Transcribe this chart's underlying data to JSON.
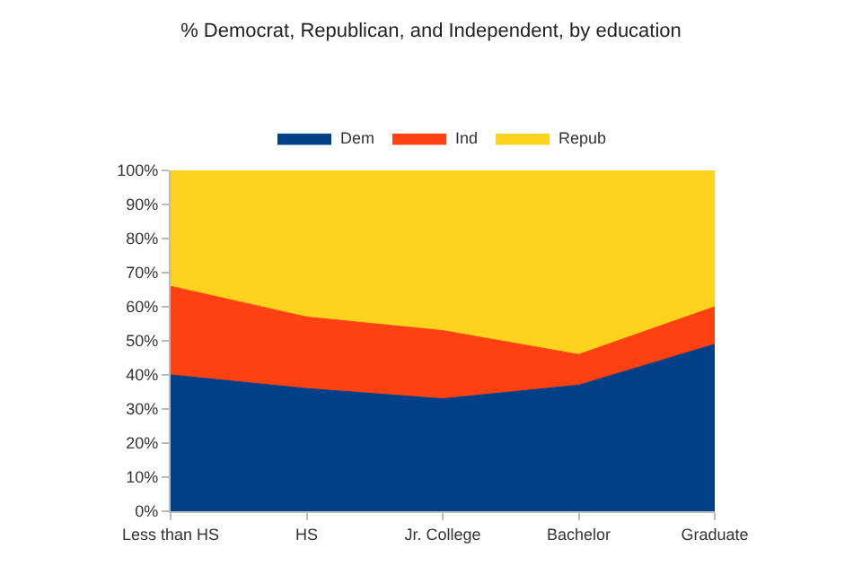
{
  "chart_data": {
    "type": "area",
    "title": "% Democrat, Republican, and Independent, by education",
    "categories": [
      "Less than HS",
      "HS",
      "Jr. College",
      "Bachelor",
      "Graduate"
    ],
    "stacked": true,
    "series": [
      {
        "name": "Dem",
        "color": "#013f87",
        "values": [
          40,
          36,
          33,
          37,
          49
        ]
      },
      {
        "name": "Ind",
        "color": "#fd4110",
        "values": [
          26,
          21,
          20,
          9,
          11
        ]
      },
      {
        "name": "Repub",
        "color": "#fdd31e",
        "values": [
          34,
          43,
          47,
          54,
          40
        ]
      }
    ],
    "ylim": [
      0,
      100
    ],
    "yticks": [
      {
        "value": 0,
        "label": "0%"
      },
      {
        "value": 10,
        "label": "10%"
      },
      {
        "value": 20,
        "label": "20%"
      },
      {
        "value": 30,
        "label": "30%"
      },
      {
        "value": 40,
        "label": "40%"
      },
      {
        "value": 50,
        "label": "50%"
      },
      {
        "value": 60,
        "label": "60%"
      },
      {
        "value": 70,
        "label": "70%"
      },
      {
        "value": 80,
        "label": "80%"
      },
      {
        "value": 90,
        "label": "90%"
      },
      {
        "value": 100,
        "label": "100%"
      }
    ],
    "legend": "top"
  }
}
